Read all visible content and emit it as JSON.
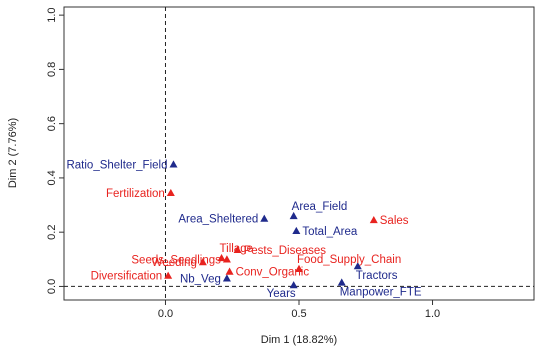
{
  "chart_data": {
    "type": "scatter",
    "xlabel": "Dim 1 (18.82%)",
    "ylabel": "Dim 2 (7.76%)",
    "xlim": [
      -0.38,
      1.38
    ],
    "ylim": [
      -0.05,
      1.03
    ],
    "x_ticks": [
      0.0,
      0.5,
      1.0
    ],
    "x_tick_labels": [
      "0.0",
      "0.5",
      "1.0"
    ],
    "y_ticks": [
      0.0,
      0.2,
      0.4,
      0.6,
      0.8,
      1.0
    ],
    "y_tick_labels": [
      "0.0",
      "0.2",
      "0.4",
      "0.6",
      "0.8",
      "1.0"
    ],
    "reference_lines": {
      "x": 0,
      "y": 0,
      "style": "dashed"
    },
    "colors": {
      "blue": "#1f2a8c",
      "red": "#e8231f"
    },
    "points": [
      {
        "label": "Ratio_Shelter_Field",
        "x": 0.03,
        "y": 0.45,
        "group": "blue",
        "label_pos": "left"
      },
      {
        "label": "Fertilization",
        "x": 0.02,
        "y": 0.345,
        "group": "red",
        "label_pos": "left"
      },
      {
        "label": "Area_Sheltered",
        "x": 0.37,
        "y": 0.25,
        "group": "blue",
        "label_pos": "left"
      },
      {
        "label": "Area_Field",
        "x": 0.48,
        "y": 0.26,
        "group": "blue",
        "label_pos": "above-right"
      },
      {
        "label": "Total_Area",
        "x": 0.49,
        "y": 0.205,
        "group": "blue",
        "label_pos": "right"
      },
      {
        "label": "Sales",
        "x": 0.78,
        "y": 0.245,
        "group": "red",
        "label_pos": "right"
      },
      {
        "label": "Tillage",
        "x": 0.21,
        "y": 0.105,
        "group": "red",
        "label_pos": "above-right"
      },
      {
        "label": "Seeds_Seedlings",
        "x": 0.23,
        "y": 0.1,
        "group": "red",
        "label_pos": "left"
      },
      {
        "label": "Pests_Diseases",
        "x": 0.27,
        "y": 0.135,
        "group": "red",
        "label_pos": "right"
      },
      {
        "label": "Weeding",
        "x": 0.14,
        "y": 0.09,
        "group": "red",
        "label_pos": "left"
      },
      {
        "label": "Food_Supply_Chain",
        "x": 0.5,
        "y": 0.065,
        "group": "red",
        "label_pos": "above-right"
      },
      {
        "label": "Tractors",
        "x": 0.72,
        "y": 0.075,
        "group": "blue",
        "label_pos": "below-right"
      },
      {
        "label": "Diversification",
        "x": 0.01,
        "y": 0.04,
        "group": "red",
        "label_pos": "left"
      },
      {
        "label": "Nb_Veg",
        "x": 0.23,
        "y": 0.03,
        "group": "blue",
        "label_pos": "left"
      },
      {
        "label": "Conv_Organic",
        "x": 0.24,
        "y": 0.055,
        "group": "red",
        "label_pos": "right"
      },
      {
        "label": "Years",
        "x": 0.48,
        "y": 0.005,
        "group": "blue",
        "label_pos": "below-left"
      },
      {
        "label": "Manpower_FTE",
        "x": 0.66,
        "y": 0.015,
        "group": "blue",
        "label_pos": "below-right"
      }
    ]
  }
}
